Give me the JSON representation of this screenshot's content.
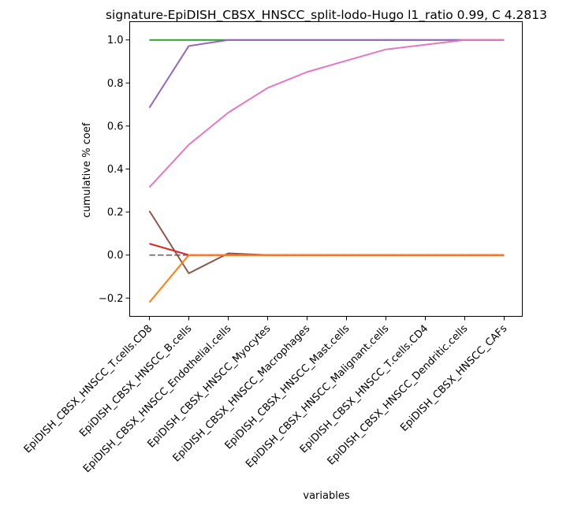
{
  "chart_data": {
    "type": "line",
    "title": "signature-EpiDISH_CBSX_HNSCC_split-lodo-Hugo l1_ratio 0.99, C 4.2813",
    "xlabel": "variables",
    "ylabel": "cumulative % coef",
    "categories": [
      "EpiDISH_CBSX_HNSCC_T.cells.CD8",
      "EpiDISH_CBSX_HNSCC_B.cells",
      "EpiDISH_CBSX_HNSCC_Endothelial.cells",
      "EpiDISH_CBSX_HNSCC_Myocytes",
      "EpiDISH_CBSX_HNSCC_Macrophages",
      "EpiDISH_CBSX_HNSCC_Mast.cells",
      "EpiDISH_CBSX_HNSCC_Malignant.cells",
      "EpiDISH_CBSX_HNSCC_T.cells.CD4",
      "EpiDISH_CBSX_HNSCC_Dendritic.cells",
      "EpiDISH_CBSX_HNSCC_CAFs"
    ],
    "ylim": [
      -0.285,
      1.085
    ],
    "yticks": [
      -0.2,
      0.0,
      0.2,
      0.4,
      0.6,
      0.8,
      1.0
    ],
    "ytick_labels": [
      "−0.2",
      "0.0",
      "0.2",
      "0.4",
      "0.6",
      "0.8",
      "1.0"
    ],
    "grid": false,
    "series": [
      {
        "color": "#7f7f7f",
        "dashed": true,
        "values": [
          0,
          0,
          0,
          0,
          0,
          0,
          0,
          0,
          0,
          0
        ]
      },
      {
        "color": "#2ca02c",
        "values": [
          1.0,
          1.0,
          1.0,
          1.0,
          1.0,
          1.0,
          1.0,
          1.0,
          1.0,
          1.0
        ]
      },
      {
        "color": "#9467bd",
        "values": [
          0.685,
          0.972,
          1.0,
          1.0,
          1.0,
          1.0,
          1.0,
          1.0,
          1.0,
          1.0
        ]
      },
      {
        "color": "#e377c2",
        "values": [
          0.315,
          0.513,
          0.662,
          0.777,
          0.851,
          0.904,
          0.956,
          0.978,
          1.0,
          1.0
        ]
      },
      {
        "color": "#8c564b",
        "values": [
          0.205,
          -0.085,
          0.008,
          0.0,
          0.0,
          0.0,
          0.0,
          0.0,
          0.0,
          0.0
        ]
      },
      {
        "color": "#d62728",
        "values": [
          0.053,
          0.0,
          0.0,
          0.0,
          0.0,
          0.0,
          0.0,
          0.0,
          0.0,
          0.0
        ]
      },
      {
        "color": "#ff7f0e",
        "values": [
          -0.22,
          0.0,
          0.0,
          0.0,
          0.0,
          0.0,
          0.0,
          0.0,
          0.0,
          0.0
        ]
      }
    ]
  }
}
